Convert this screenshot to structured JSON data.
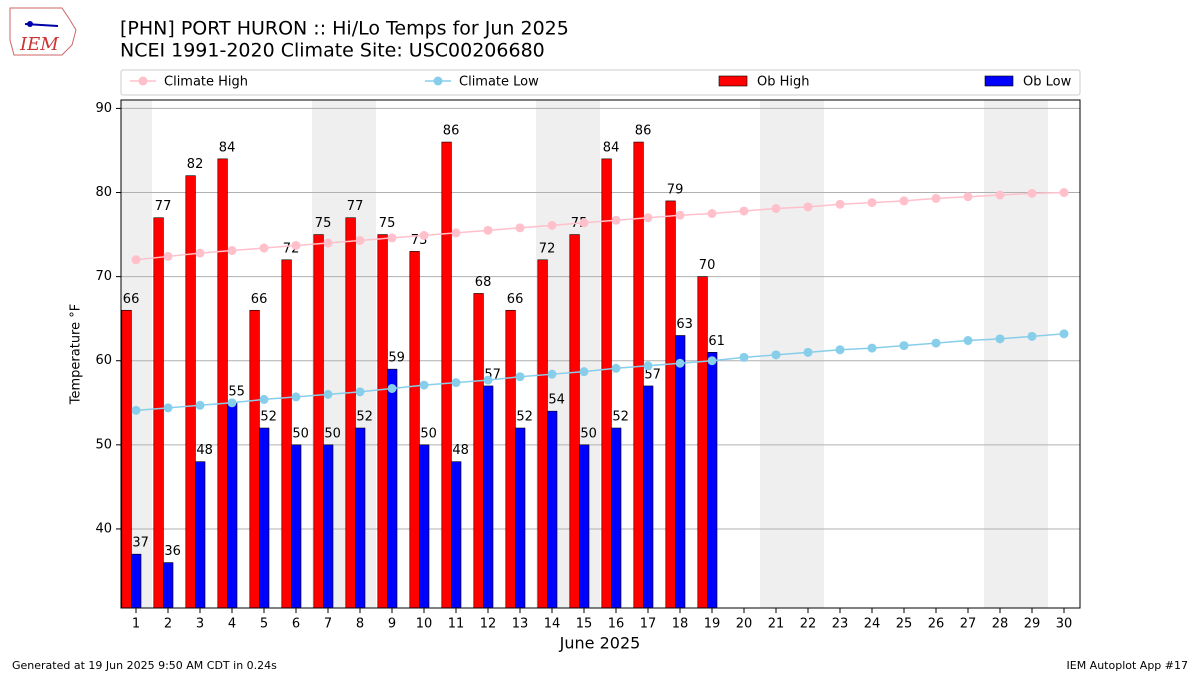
{
  "header": {
    "logo": "IEM"
  },
  "chart_data": {
    "type": "bar_line",
    "title": "[PHN] PORT HURON :: Hi/Lo Temps for Jun 2025",
    "subtitle": "NCEI 1991-2020 Climate Site: USC00206680",
    "y_label": "Temperature °F",
    "x_label": "June 2025",
    "categories": [
      "1",
      "2",
      "3",
      "4",
      "5",
      "6",
      "7",
      "8",
      "9",
      "10",
      "11",
      "12",
      "13",
      "14",
      "15",
      "16",
      "17",
      "18",
      "19",
      "20",
      "21",
      "22",
      "23",
      "24",
      "25",
      "26",
      "27",
      "28",
      "29",
      "30"
    ],
    "shaded_days": [
      1,
      7,
      8,
      14,
      15,
      21,
      22,
      28,
      29
    ],
    "series": [
      {
        "name": "Climate High",
        "kind": "line",
        "color": "#ffc0cb",
        "values": [
          72.0,
          72.4,
          72.8,
          73.1,
          73.4,
          73.7,
          74.0,
          74.3,
          74.6,
          74.9,
          75.2,
          75.5,
          75.8,
          76.1,
          76.4,
          76.7,
          77.0,
          77.3,
          77.5,
          77.8,
          78.1,
          78.3,
          78.6,
          78.8,
          79.0,
          79.3,
          79.5,
          79.7,
          79.9,
          80.0
        ]
      },
      {
        "name": "Climate Low",
        "kind": "line",
        "color": "#87ceeb",
        "values": [
          54.1,
          54.4,
          54.7,
          55.0,
          55.4,
          55.7,
          56.0,
          56.3,
          56.7,
          57.1,
          57.4,
          57.7,
          58.1,
          58.4,
          58.7,
          59.1,
          59.4,
          59.7,
          60.0,
          60.4,
          60.7,
          61.0,
          61.3,
          61.5,
          61.8,
          62.1,
          62.4,
          62.6,
          62.9,
          63.2
        ]
      },
      {
        "name": "Ob High",
        "kind": "bar",
        "color": "#ff0000",
        "values": [
          66,
          77,
          82,
          84,
          66,
          72,
          75,
          77,
          75,
          73,
          86,
          68,
          66,
          72,
          75,
          84,
          86,
          79,
          70,
          null,
          null,
          null,
          null,
          null,
          null,
          null,
          null,
          null,
          null,
          null
        ]
      },
      {
        "name": "Ob Low",
        "kind": "bar",
        "color": "#0000ff",
        "values": [
          37,
          36,
          48,
          55,
          52,
          50,
          50,
          52,
          59,
          50,
          48,
          57,
          52,
          54,
          50,
          52,
          57,
          63,
          61,
          null,
          null,
          null,
          null,
          null,
          null,
          null,
          null,
          null,
          null,
          null
        ]
      }
    ],
    "ylim": [
      30.6,
      91
    ],
    "yticks": [
      40,
      50,
      60,
      70,
      80,
      90
    ],
    "grid": true
  },
  "footer": {
    "left": "Generated at 19 Jun 2025 9:50 AM CDT in 0.24s",
    "right": "IEM Autoplot App #17"
  }
}
